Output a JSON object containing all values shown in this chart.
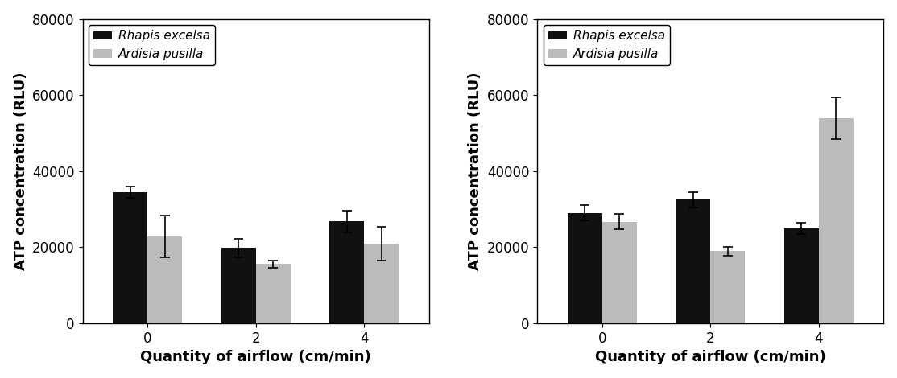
{
  "left": {
    "categories": [
      0,
      2,
      4
    ],
    "rhapis_values": [
      34500,
      19800,
      26800
    ],
    "ardisia_values": [
      22800,
      15600,
      20900
    ],
    "rhapis_errors": [
      1500,
      2500,
      2800
    ],
    "ardisia_errors": [
      5500,
      1000,
      4500
    ]
  },
  "right": {
    "categories": [
      0,
      2,
      4
    ],
    "rhapis_values": [
      29000,
      32500,
      25000
    ],
    "ardisia_values": [
      26700,
      19000,
      54000
    ],
    "rhapis_errors": [
      2000,
      2000,
      1500
    ],
    "ardisia_errors": [
      2000,
      1200,
      5500
    ]
  },
  "ylabel": "ATP concentration (RLU)",
  "xlabel": "Quantity of airflow (cm/min)",
  "ylim": [
    0,
    80000
  ],
  "yticks": [
    0,
    20000,
    40000,
    60000,
    80000
  ],
  "legend_labels": [
    "Rhapis excelsa",
    "Ardisia pusilla"
  ],
  "bar_colors": [
    "#111111",
    "#bbbbbb"
  ],
  "bar_width": 0.32,
  "tick_fontsize": 12,
  "label_fontsize": 13,
  "legend_fontsize": 11
}
